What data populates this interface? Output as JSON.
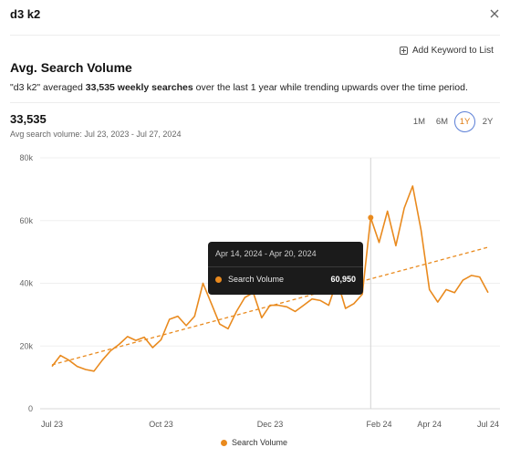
{
  "header": {
    "title": "d3 k2"
  },
  "actions": {
    "add_keyword": "Add Keyword to List"
  },
  "section": {
    "title": "Avg. Search Volume",
    "summary": {
      "part1": "\"d3 k2\" averaged ",
      "bold1": "33,535 weekly searches",
      "part2": " over the last 1 year while trending upwards over the time period."
    }
  },
  "stats": {
    "value": "33,535",
    "range": "Avg search volume: Jul 23, 2023 - Jul 27, 2024"
  },
  "periods": [
    {
      "label": "1M",
      "active": false
    },
    {
      "label": "6M",
      "active": false
    },
    {
      "label": "1Y",
      "active": true
    },
    {
      "label": "2Y",
      "active": false
    }
  ],
  "tooltip": {
    "range": "Apr 14, 2024 - Apr 20, 2024",
    "label": "Search Volume",
    "value": "60,950"
  },
  "colors": {
    "accent": "#e98a1e",
    "active_ring": "#5b7fd6"
  },
  "chart_data": {
    "type": "line",
    "series": [
      {
        "name": "Search Volume",
        "values": [
          13500,
          17000,
          15500,
          13500,
          12500,
          12000,
          15500,
          18500,
          20500,
          23000,
          21800,
          22800,
          19500,
          22000,
          28500,
          29500,
          26500,
          29500,
          40000,
          33500,
          27000,
          25500,
          31000,
          35500,
          37000,
          29000,
          33000,
          33000,
          32500,
          31000,
          33000,
          35000,
          34500,
          33000,
          41000,
          32000,
          33500,
          36500,
          60950,
          53000,
          63000,
          52000,
          64000,
          71000,
          57000,
          38000,
          34000,
          38000,
          37000,
          41000,
          42500,
          42000,
          37000
        ]
      }
    ],
    "trendline": {
      "start": 14000,
      "end": 51500
    },
    "highlight_index": 38,
    "x_ticks": [
      "Jul 23",
      "Oct 23",
      "Dec 23",
      "Feb 24",
      "Apr 24",
      "Jul 24"
    ],
    "x_tick_indices": [
      0,
      13,
      26,
      39,
      45,
      52
    ],
    "y_ticks": [
      0,
      20000,
      40000,
      60000,
      80000
    ],
    "y_tick_labels": [
      "0",
      "20k",
      "40k",
      "60k",
      "80k"
    ],
    "ylim": [
      0,
      80000
    ],
    "legend": {
      "label": "Search Volume",
      "position": "bottom-center"
    }
  }
}
